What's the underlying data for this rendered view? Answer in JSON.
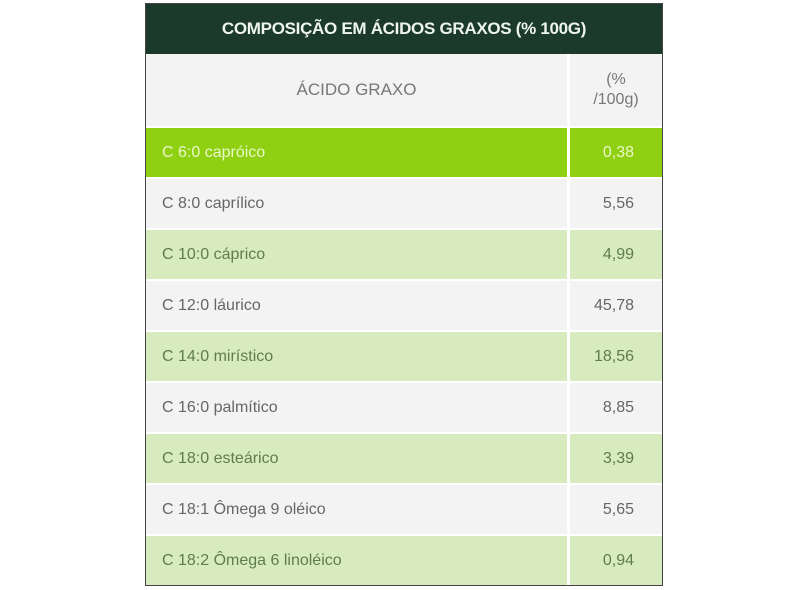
{
  "title": "COMPOSIÇÃO EM ÁCIDOS GRAXOS (% 100G)",
  "columns": {
    "name": "ÁCIDO GRAXO",
    "value_line1": "(%",
    "value_line2": "/100g)"
  },
  "rows": [
    {
      "name": "C 6:0 capróico",
      "value": "0,38",
      "style": "hl"
    },
    {
      "name": "C 8:0 caprílico",
      "value": "5,56",
      "style": "w"
    },
    {
      "name": "C 10:0 cáprico",
      "value": "4,99",
      "style": "g"
    },
    {
      "name": "C 12:0 láurico",
      "value": "45,78",
      "style": "w"
    },
    {
      "name": "C 14:0 mirístico",
      "value": "18,56",
      "style": "g"
    },
    {
      "name": "C 16:0 palmítico",
      "value": "8,85",
      "style": "w"
    },
    {
      "name": "C 18:0 esteárico",
      "value": "3,39",
      "style": "g"
    },
    {
      "name": "C 18:1 Ômega 9 oléico",
      "value": "5,65",
      "style": "w"
    },
    {
      "name": "C 18:2 Ômega 6 linoléico",
      "value": "0,94",
      "style": "g"
    }
  ],
  "colors": {
    "header": "#1c3a2c",
    "highlight": "#8fd112",
    "alt_row": "#d8ebbf",
    "row": "#f3f3f3"
  }
}
